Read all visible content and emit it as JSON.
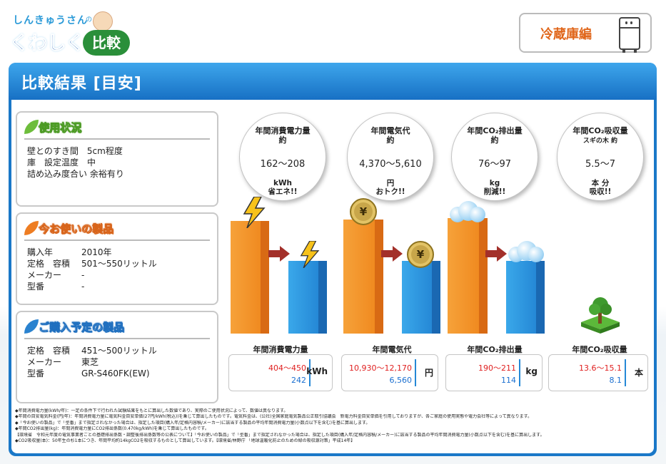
{
  "logo": {
    "small": "しんきゅうさん",
    "no": "の",
    "big": "くわしく",
    "hikaku": "比較"
  },
  "category": {
    "label": "冷蔵庫編",
    "icon": "fridge-character-icon"
  },
  "result": {
    "title": "比較結果 [目安]"
  },
  "usage": {
    "title": "使用状況",
    "rows": [
      {
        "k": "壁とのすき間",
        "v": "5cm程度"
      },
      {
        "k": "庫　設定温度",
        "v": "中"
      },
      {
        "k": "詰め込み度合い",
        "v": "余裕有り"
      }
    ]
  },
  "current": {
    "title": "今お使いの製品",
    "rows": [
      {
        "k": "購入年",
        "v": "2010年"
      },
      {
        "k": "定格　容積",
        "v": "501～550リットル"
      },
      {
        "k": "メーカー",
        "v": "-"
      },
      {
        "k": "型番",
        "v": "-"
      }
    ]
  },
  "planned": {
    "title": "ご購入予定の製品",
    "rows": [
      {
        "k": "定格　容積",
        "v": "451～500リットル"
      },
      {
        "k": "メーカー",
        "v": "東芝"
      },
      {
        "k": "型番",
        "v": "GR-S460FK(EW)"
      }
    ]
  },
  "bubbles": [
    {
      "title": "年間消費電力量",
      "approx": "約",
      "value": "162～208",
      "unit": "kWh",
      "note": "省エネ!!"
    },
    {
      "title": "年間電気代",
      "approx": "約",
      "value": "4,370～5,610",
      "unit": "円",
      "note": "おトク!!"
    },
    {
      "title": "年間CO₂排出量",
      "approx": "約",
      "value": "76～97",
      "unit": "kg",
      "note": "削減!!"
    },
    {
      "title": "年間CO₂吸収量",
      "approx": "スギの木 約",
      "value": "5.5～7",
      "unit": "本 分",
      "note": "吸収!!"
    }
  ],
  "stats": [
    {
      "label": "年間消費電力量",
      "old": "404～450",
      "new": "242",
      "unit": "kWh"
    },
    {
      "label": "年間電気代",
      "old": "10,930～12,170",
      "new": "6,560",
      "unit": "円"
    },
    {
      "label": "年間CO₂排出量",
      "old": "190～211",
      "new": "114",
      "unit": "kg"
    },
    {
      "label": "年間CO₂吸収量",
      "old": "13.6～15.1",
      "new": "8.1",
      "unit": "本"
    }
  ],
  "icons": {
    "coin": "¥"
  },
  "colors": {
    "old": "#e02020",
    "new": "#1a6fd0",
    "orange_bar": "#f08a20",
    "blue_bar": "#2588d6",
    "frame": "#1a78c8"
  },
  "notes": [
    "◆年間消費電力量(kWh/年)：一定の条件下で行われた試験結果をもとに算出した数値であり、実際のご使用状況によって、数値は異なります。",
    "◆年間の目安電気料金(円/年)：年間消費電力量に電気料金目安単価(27円/kWh(税込))を乗じて算出したものです。電気料金は、(公社)全国家庭電気製品公正取引協議会　新電力料金目安単価を引用しておりますが、各ご家庭の使用実態や電力会社等によって異なります。",
    "◆「今お使いの製品」で「型番」まで指定されなかった場合は、指定した項目(購入年/定格内容積/メーカー)に該当する製品の平均年間消費電力量(小数点以下を含む)を基に算出します。",
    "◆年間CO2排出量(kg)：年間消費電力量にCO2排出係数(0.470kg/kWh)を乗じて算出したものです。",
    "【環境省　令和元年度の電気事業者ごとの基礎排出係数・調整後排出係数等の公表について】「今お使いの製品」で「型番」まで指定されなかった場合は、指定した項目(購入年/定格内容積/メーカー)に該当する製品の平均年間消費電力量(小数点以下を含む)を基に算出します。",
    "◆CO2吸収量(本)：50年生の杉1本につき、年間平均約14kgCO2を吸収するものとして算出しています。【環境省/林野庁 「地球温暖化防止のための緑の吸収源対策」平成14年】"
  ]
}
